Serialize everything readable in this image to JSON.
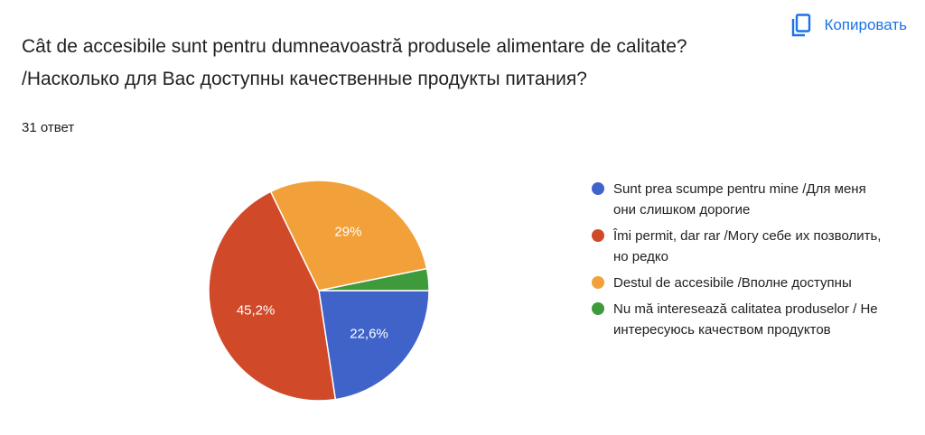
{
  "header": {
    "title_line1": "Cât de accesibile sunt pentru dumneavoastră produsele alimentare de calitate?",
    "title_line2": "/Насколько для Вас доступны качественные продукты питания?",
    "copy_label": "Копировать",
    "copy_icon": "copy-icon"
  },
  "response_count": "31 ответ",
  "chart_data": {
    "type": "pie",
    "title": "",
    "slices": [
      {
        "label": "Sunt prea scumpe pentru mine /Для меня они слишком дорогие",
        "value": 22.6,
        "display": "22,6%",
        "color": "#3f63c9"
      },
      {
        "label": "Îmi permit, dar rar /Могу себе их позволить, но редко",
        "value": 45.2,
        "display": "45,2%",
        "color": "#d04a2a"
      },
      {
        "label": "Destul de accesibile /Вполне доступны",
        "value": 29.0,
        "display": "29%",
        "color": "#f2a03a"
      },
      {
        "label": "Nu mă interesează calitatea produselor / Не интересуюсь качеством продуктов",
        "value": 3.2,
        "display": "",
        "color": "#3e9a3a"
      }
    ],
    "legend_position": "right"
  }
}
